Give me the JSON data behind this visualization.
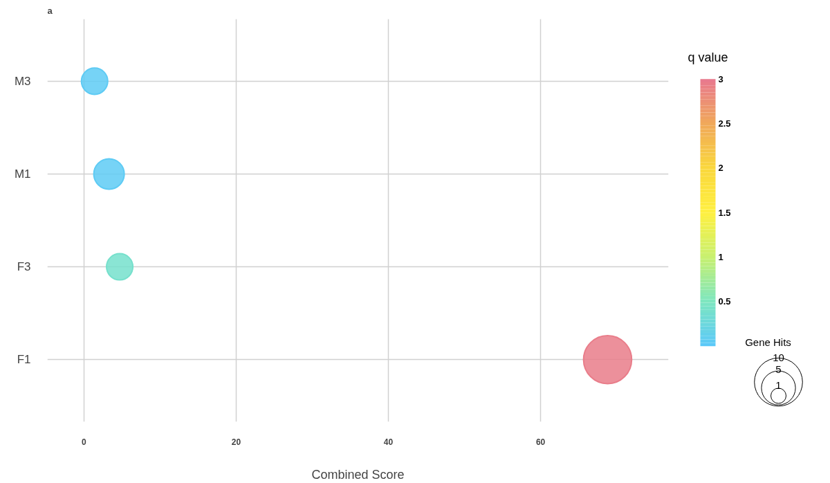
{
  "chart_data": {
    "type": "bubble",
    "title": "a",
    "xlabel": "Combined Score",
    "clabel": "q value",
    "legend_title": "Gene Hits",
    "categories": [
      "M3",
      "M1",
      "F3",
      "F1"
    ],
    "values": [
      1.4,
      3.3,
      4.7,
      68.8
    ],
    "sizes": [
      3,
      4,
      3,
      10
    ],
    "cvalues": [
      0.05,
      0.05,
      0.4,
      2.95
    ],
    "size_legend": [
      1,
      5,
      10
    ],
    "orientation": "horizontal",
    "xlim": [
      -4.8,
      76.8
    ],
    "xticks": [
      0,
      20,
      40,
      60
    ],
    "clim": [
      0,
      3
    ],
    "cticks": [
      0.5,
      1,
      1.5,
      2,
      2.5,
      3
    ],
    "grid": true,
    "marker": "circle"
  }
}
